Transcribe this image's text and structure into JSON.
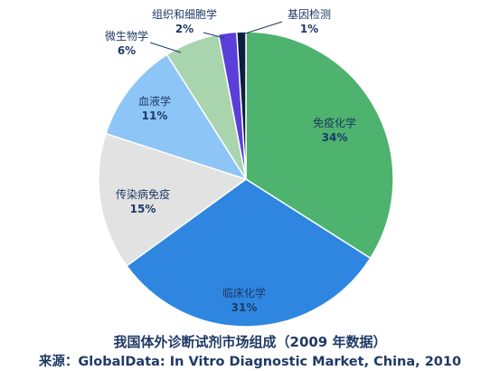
{
  "chart_data": {
    "type": "pie",
    "slices": [
      {
        "label": "免疫化学",
        "value": 34,
        "value_label": "34%",
        "color": "#4db36e"
      },
      {
        "label": "临床化学",
        "value": 31,
        "value_label": "31%",
        "color": "#2e86e0"
      },
      {
        "label": "传染病免疫",
        "value": 15,
        "value_label": "15%",
        "color": "#e2e2e2"
      },
      {
        "label": "血液学",
        "value": 11,
        "value_label": "11%",
        "color": "#8ec5f7"
      },
      {
        "label": "微生物学",
        "value": 6,
        "value_label": "6%",
        "color": "#a8d4ae"
      },
      {
        "label": "组织和细胞学",
        "value": 2,
        "value_label": "2%",
        "color": "#5b3fd9"
      },
      {
        "label": "基因检测",
        "value": 1,
        "value_label": "1%",
        "color": "#0d1f3f"
      }
    ],
    "start_angle": "12 o'clock",
    "direction": "clockwise",
    "legend": "none"
  },
  "caption": {
    "title": "我国体外诊断试剂市场组成（2009 年数据）",
    "source": "来源：GlobalData: In Vitro Diagnostic Market, China, 2010"
  }
}
